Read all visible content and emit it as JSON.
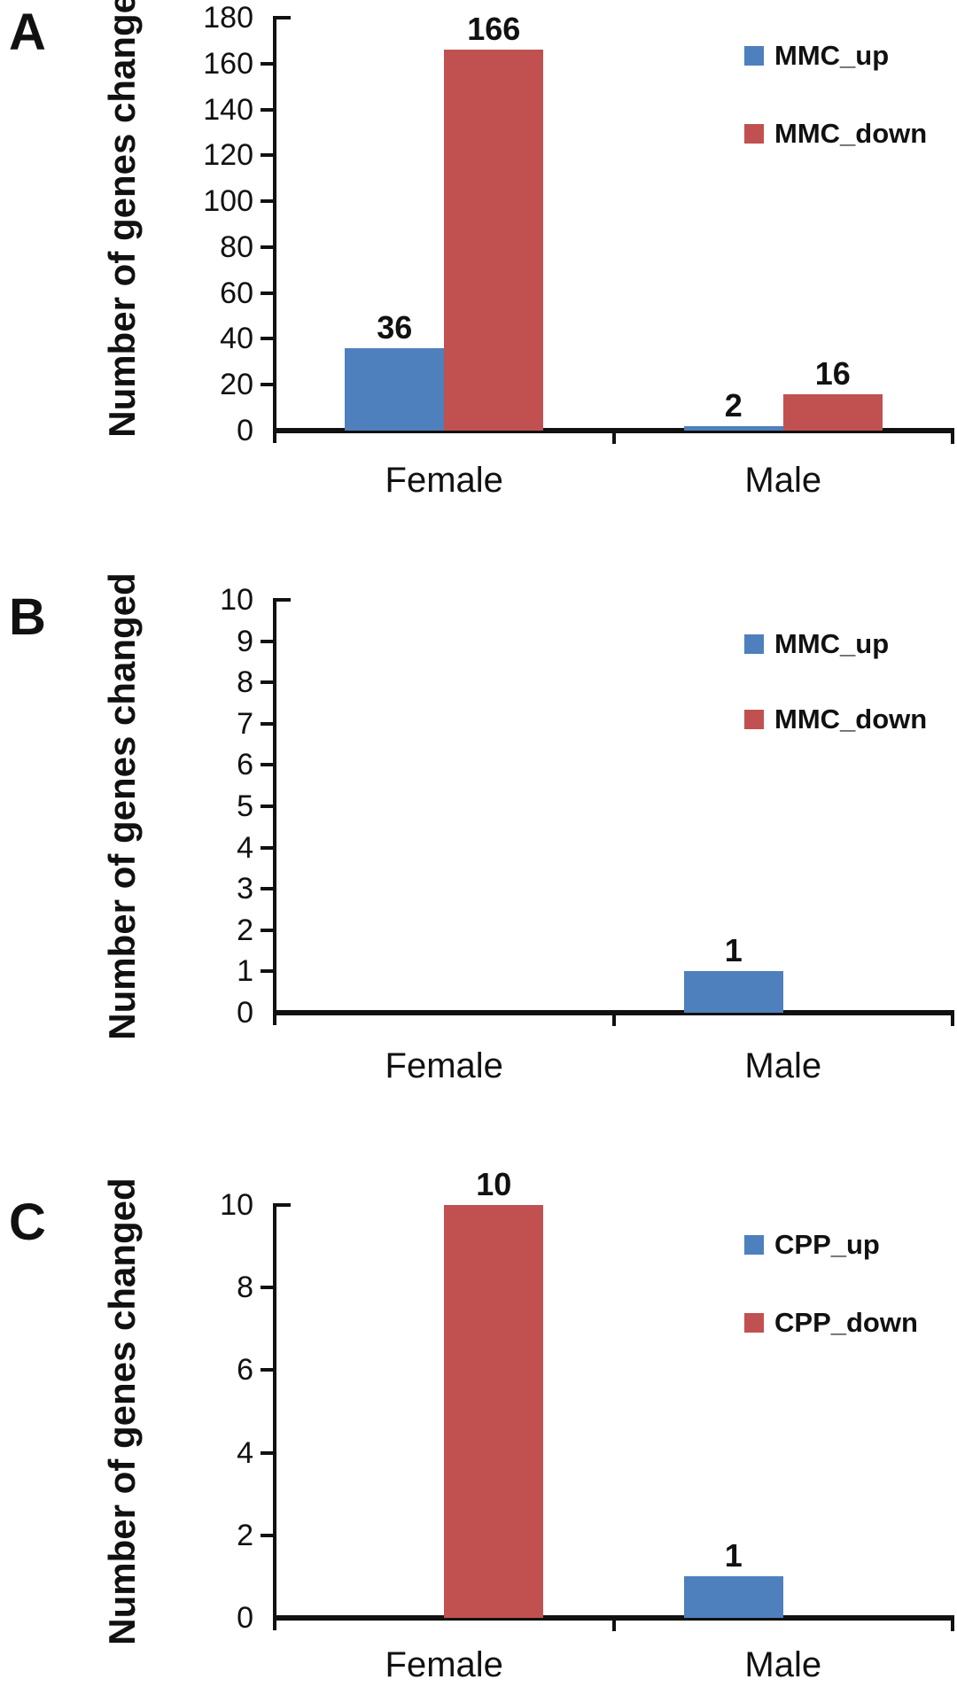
{
  "figure": {
    "background": "#ffffff",
    "panels": [
      {
        "label": "A"
      },
      {
        "label": "B"
      },
      {
        "label": "C"
      }
    ]
  },
  "colors": {
    "up_series": "#4d80bd",
    "down_series": "#c05150",
    "axis": "#111111"
  },
  "chart_data": [
    {
      "panel": "A",
      "type": "bar",
      "title": "",
      "xlabel": "",
      "ylabel": "Number of genes changed",
      "categories": [
        "Female",
        "Male"
      ],
      "series": [
        {
          "name": "MMC_up",
          "color": "#4d80bd",
          "values": [
            36,
            2
          ]
        },
        {
          "name": "MMC_down",
          "color": "#c05150",
          "values": [
            166,
            16
          ]
        }
      ],
      "ylim": [
        0,
        180
      ],
      "ytick_step": 20,
      "grid": false,
      "legend_position": "upper-right",
      "value_labels": true
    },
    {
      "panel": "B",
      "type": "bar",
      "title": "",
      "xlabel": "",
      "ylabel": "Number of genes changed",
      "categories": [
        "Female",
        "Male"
      ],
      "series": [
        {
          "name": "MMC_up",
          "color": "#4d80bd",
          "values": [
            0,
            1
          ]
        },
        {
          "name": "MMC_down",
          "color": "#c05150",
          "values": [
            0,
            0
          ]
        }
      ],
      "ylim": [
        0,
        10
      ],
      "ytick_step": 1,
      "grid": false,
      "legend_position": "upper-right",
      "value_labels": true
    },
    {
      "panel": "C",
      "type": "bar",
      "title": "",
      "xlabel": "",
      "ylabel": "Number of genes changed",
      "categories": [
        "Female",
        "Male"
      ],
      "series": [
        {
          "name": "CPP_up",
          "color": "#4d80bd",
          "values": [
            0,
            1
          ]
        },
        {
          "name": "CPP_down",
          "color": "#c05150",
          "values": [
            10,
            0
          ]
        }
      ],
      "ylim": [
        0,
        10
      ],
      "ytick_step": 2,
      "grid": false,
      "legend_position": "upper-right",
      "value_labels": true
    }
  ]
}
